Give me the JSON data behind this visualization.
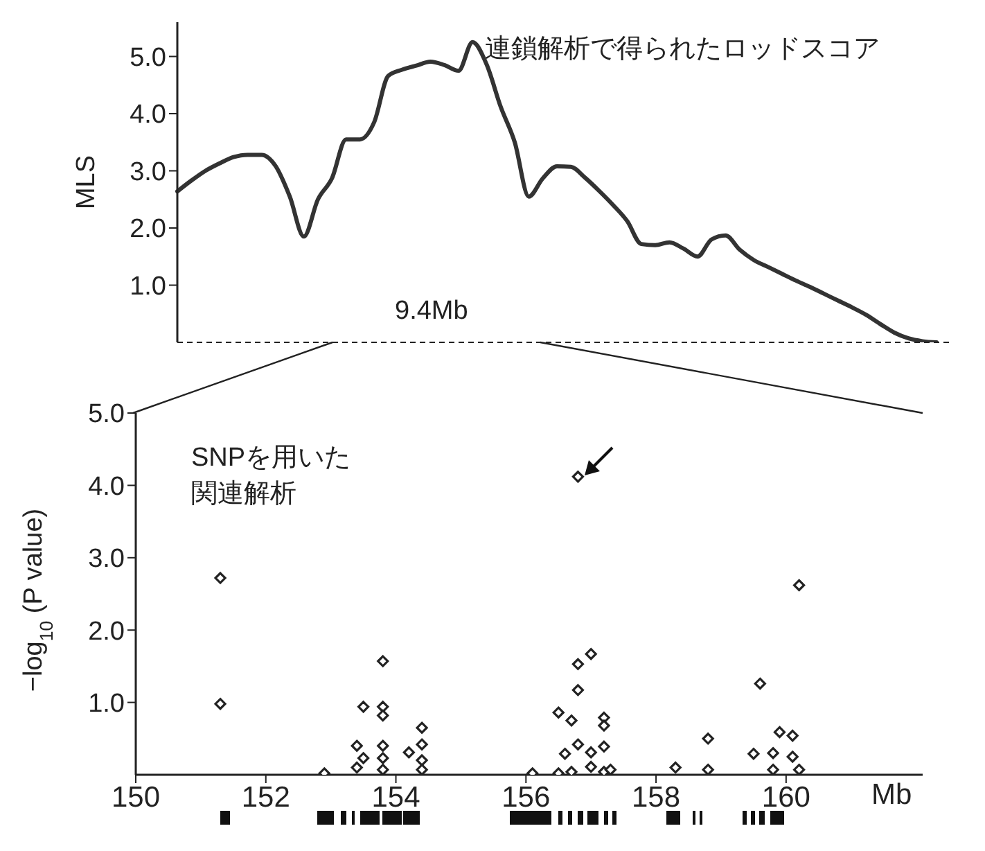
{
  "chart_data": [
    {
      "type": "line",
      "ylabel": "MLS",
      "annotations": [
        "連鎖解析で得られたロッドスコア",
        "9.4Mb"
      ],
      "tick_labels": "y",
      "ylim": [
        0,
        5.6
      ],
      "yticks": [
        {
          "value": 1,
          "label": "1.0"
        },
        {
          "value": 2,
          "label": "2.0"
        },
        {
          "value": 3,
          "label": "3.0"
        },
        {
          "value": 4,
          "label": "4.0"
        },
        {
          "value": 5,
          "label": "5.0"
        }
      ],
      "marker": "none",
      "line_style": "solid",
      "categories": [
        null,
        null,
        null,
        null,
        null,
        null,
        null,
        null,
        null,
        null,
        null,
        null,
        null,
        null,
        null,
        null,
        null,
        null,
        null,
        null,
        null,
        null,
        null,
        null,
        null,
        null,
        null,
        null,
        null,
        null,
        null,
        null,
        null,
        null,
        null,
        null,
        null,
        null,
        null,
        null,
        null,
        null,
        null,
        null,
        null,
        null,
        null,
        null,
        null,
        null,
        null,
        null,
        null,
        null,
        null
      ],
      "series": [
        {
          "color": "#333333",
          "values": [
            2.64,
            2.83,
            3.0,
            3.13,
            3.24,
            3.28,
            3.28,
            3.08,
            2.55,
            1.85,
            2.5,
            2.87,
            3.55,
            3.55,
            3.85,
            4.66,
            4.77,
            4.84,
            4.91,
            4.85,
            4.75,
            5.25,
            4.86,
            4.12,
            3.5,
            2.55,
            2.87,
            3.08,
            3.07,
            2.88,
            2.65,
            2.4,
            2.12,
            1.72,
            1.7,
            1.75,
            1.64,
            1.5,
            1.8,
            1.87,
            1.62,
            1.44,
            1.32,
            1.2,
            1.08,
            0.97,
            0.85,
            0.73,
            0.61,
            0.48,
            0.32,
            0.17,
            0.07,
            0.02,
            0
          ]
        }
      ]
    },
    {
      "type": "scatter",
      "ylabel": "−log$_{10}$ (P value)",
      "xlabel": "Mb",
      "annotations": [
        "SNPを用いた",
        "関連解析"
      ],
      "marker": "diamond",
      "xlim": [
        150,
        162.1
      ],
      "xticks": [
        150,
        152,
        154,
        156,
        158,
        160
      ],
      "ylim": [
        0,
        5
      ],
      "yticks": [
        {
          "value": 1,
          "label": "1.0"
        },
        {
          "value": 2,
          "label": "2.0"
        },
        {
          "value": 3,
          "label": "3.0"
        },
        {
          "value": 4,
          "label": "4.0"
        },
        {
          "value": 5,
          "label": "5.0"
        }
      ],
      "series": [
        {
          "color": "#222222",
          "x": [
            151.3,
            151.3,
            152.9,
            153.5,
            153.8,
            153.8,
            153.8,
            153.4,
            153.5,
            153.4,
            153.8,
            153.8,
            153.8,
            154.2,
            154.4,
            154.4,
            154.4,
            154.4,
            156.1,
            156.8,
            157.0,
            156.8,
            156.8,
            156.5,
            156.7,
            157.2,
            157.2,
            156.8,
            156.6,
            157.0,
            157.2,
            156.7,
            156.5,
            157.0,
            157.2,
            157.3,
            158.3,
            158.8,
            158.8,
            159.6,
            159.5,
            159.9,
            159.8,
            159.8,
            160.1,
            160.1,
            160.2,
            160.2
          ],
          "values": [
            2.72,
            0.98,
            0.02,
            0.94,
            1.57,
            0.94,
            0.82,
            0.4,
            0.23,
            0.1,
            0.4,
            0.23,
            0.07,
            0.31,
            0.65,
            0.42,
            0.2,
            0.07,
            0.02,
            4.12,
            1.67,
            1.53,
            1.17,
            0.86,
            0.75,
            0.79,
            0.68,
            0.42,
            0.29,
            0.31,
            0.39,
            0.04,
            0.02,
            0.11,
            0.04,
            0.07,
            0.1,
            0.5,
            0.07,
            1.26,
            0.29,
            0.59,
            0.3,
            0.07,
            0.54,
            0.25,
            0.07,
            2.62
          ]
        }
      ]
    }
  ]
}
